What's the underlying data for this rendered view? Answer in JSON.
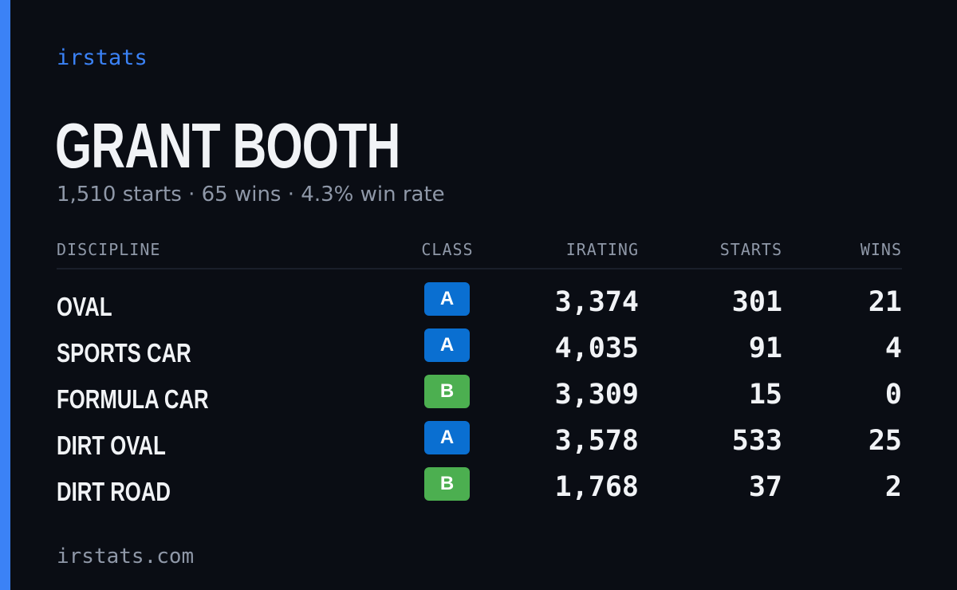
{
  "brand": "irstats",
  "driver": {
    "name": "GRANT BOOTH",
    "summary": {
      "starts": "1,510 starts",
      "wins": "65 wins",
      "win_rate": "4.3% win rate",
      "separator": "·"
    }
  },
  "table": {
    "headers": {
      "discipline": "DISCIPLINE",
      "class": "CLASS",
      "irating": "IRATING",
      "starts": "STARTS",
      "wins": "WINS"
    },
    "rows": [
      {
        "discipline": "OVAL",
        "class": "A",
        "class_color": "#0a6fd1",
        "irating": "3,374",
        "starts": "301",
        "wins": "21"
      },
      {
        "discipline": "SPORTS CAR",
        "class": "A",
        "class_color": "#0a6fd1",
        "irating": "4,035",
        "starts": "91",
        "wins": "4"
      },
      {
        "discipline": "FORMULA CAR",
        "class": "B",
        "class_color": "#4caf50",
        "irating": "3,309",
        "starts": "15",
        "wins": "0"
      },
      {
        "discipline": "DIRT OVAL",
        "class": "A",
        "class_color": "#0a6fd1",
        "irating": "3,578",
        "starts": "533",
        "wins": "25"
      },
      {
        "discipline": "DIRT ROAD",
        "class": "B",
        "class_color": "#4caf50",
        "irating": "1,768",
        "starts": "37",
        "wins": "2"
      }
    ]
  },
  "footer": "irstats.com",
  "colors": {
    "accent": "#3b82f6",
    "background": "#0a0d14",
    "class_a": "#0a6fd1",
    "class_b": "#4caf50"
  }
}
